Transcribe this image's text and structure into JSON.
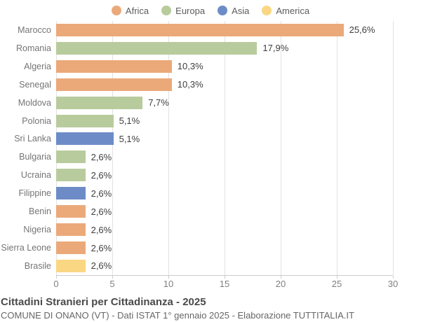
{
  "legend": [
    {
      "label": "Africa",
      "color": "#EBA97A"
    },
    {
      "label": "Europa",
      "color": "#B8CB9D"
    },
    {
      "label": "Asia",
      "color": "#6D8CC7"
    },
    {
      "label": "America",
      "color": "#FAD783"
    }
  ],
  "chart_data": {
    "type": "bar",
    "orientation": "horizontal",
    "title": "Cittadini Stranieri per Cittadinanza - 2025",
    "subtitle": "COMUNE DI ONANO (VT) - Dati ISTAT 1° gennaio 2025 - Elaborazione TUTTITALIA.IT",
    "xlim": [
      0,
      30
    ],
    "x_ticks": [
      0,
      5,
      10,
      15,
      20,
      25,
      30
    ],
    "grid": true,
    "legend_position": "top",
    "categories": [
      "Marocco",
      "Romania",
      "Algeria",
      "Senegal",
      "Moldova",
      "Polonia",
      "Sri Lanka",
      "Bulgaria",
      "Ucraina",
      "Filippine",
      "Benin",
      "Nigeria",
      "Sierra Leone",
      "Brasile"
    ],
    "values": [
      25.6,
      17.9,
      10.3,
      10.3,
      7.7,
      5.1,
      5.1,
      2.6,
      2.6,
      2.6,
      2.6,
      2.6,
      2.6,
      2.6
    ],
    "value_labels": [
      "25,6%",
      "17,9%",
      "10,3%",
      "10,3%",
      "7,7%",
      "5,1%",
      "5,1%",
      "2,6%",
      "2,6%",
      "2,6%",
      "2,6%",
      "2,6%",
      "2,6%",
      "2,6%"
    ],
    "groups": [
      "Africa",
      "Europa",
      "Africa",
      "Africa",
      "Europa",
      "Europa",
      "Asia",
      "Europa",
      "Europa",
      "Asia",
      "Africa",
      "Africa",
      "Africa",
      "America"
    ]
  },
  "colors": {
    "Africa": "#EBA97A",
    "Europa": "#B8CB9D",
    "Asia": "#6D8CC7",
    "America": "#FAD783",
    "gridline": "#e2e2e2",
    "axis_line": "#cccccc"
  }
}
